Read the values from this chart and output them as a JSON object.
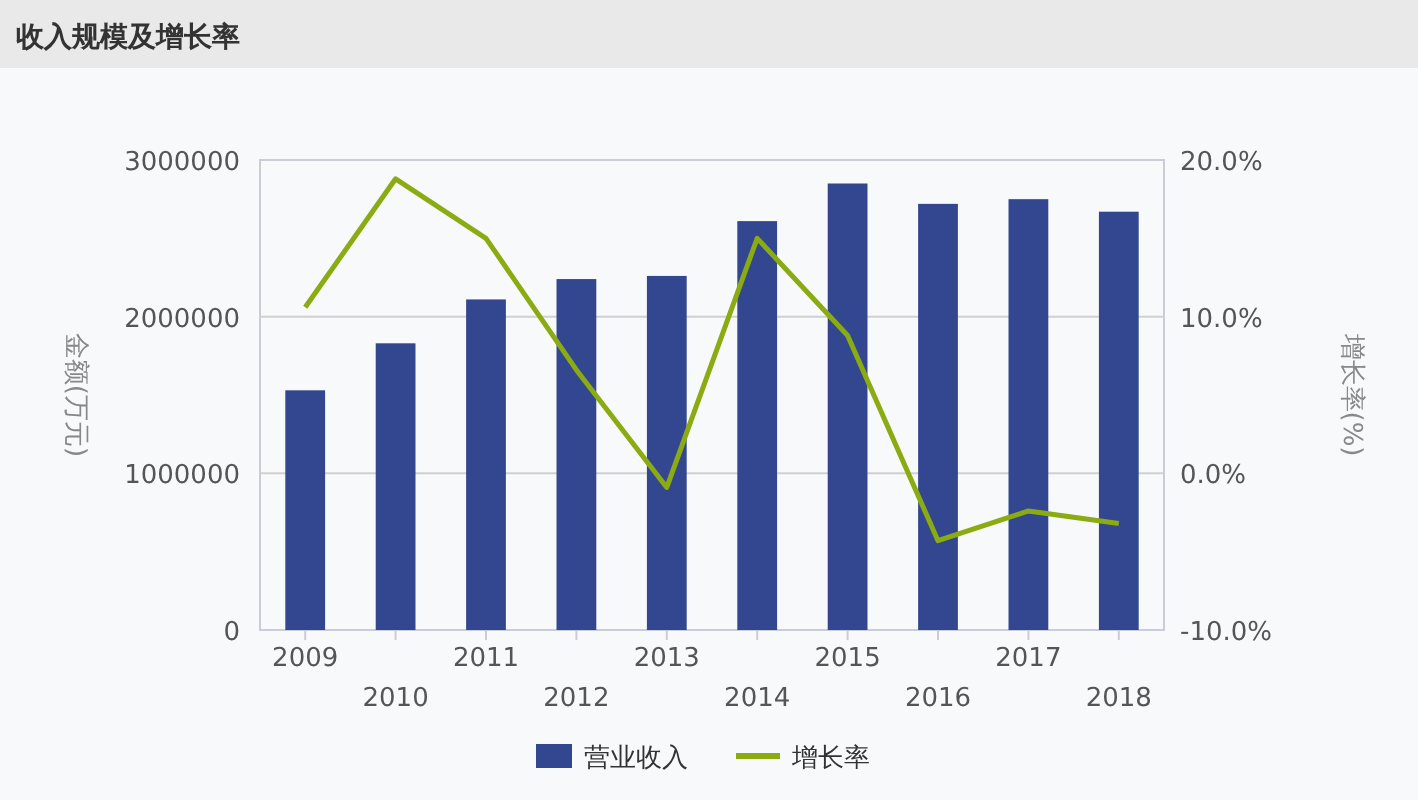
{
  "chart_data": {
    "type": "bar",
    "title": "收入规模及增长率",
    "ylabel": "金额(万元)",
    "y2label": "增长率(%)",
    "categories": [
      "2009",
      "2010",
      "2011",
      "2012",
      "2013",
      "2014",
      "2015",
      "2016",
      "2017",
      "2018"
    ],
    "series": [
      {
        "name": "营业收入",
        "color": "#32478f",
        "values": [
          1530000,
          1830000,
          2110000,
          2240000,
          2260000,
          2610000,
          2850000,
          2720000,
          2750000,
          2670000
        ]
      },
      {
        "name": "增长率",
        "type": "line",
        "axis": "y2",
        "color": "#8aab12",
        "values": [
          10.6,
          18.8,
          15.0,
          6.6,
          -0.9,
          15.0,
          8.8,
          -4.3,
          -2.4,
          -3.2
        ]
      }
    ],
    "ylim": [
      0,
      3000000
    ],
    "yticks": [
      0,
      1000000,
      2000000,
      3000000
    ],
    "y2lim": [
      -10,
      20
    ],
    "y2ticks": [
      {
        "value": -10,
        "label": "-10.0%"
      },
      {
        "value": 0,
        "label": "0.0%"
      },
      {
        "value": 10,
        "label": "10.0%"
      },
      {
        "value": 20,
        "label": "20.0%"
      }
    ],
    "grid": "y",
    "legend": "bottom",
    "marker": "none"
  }
}
